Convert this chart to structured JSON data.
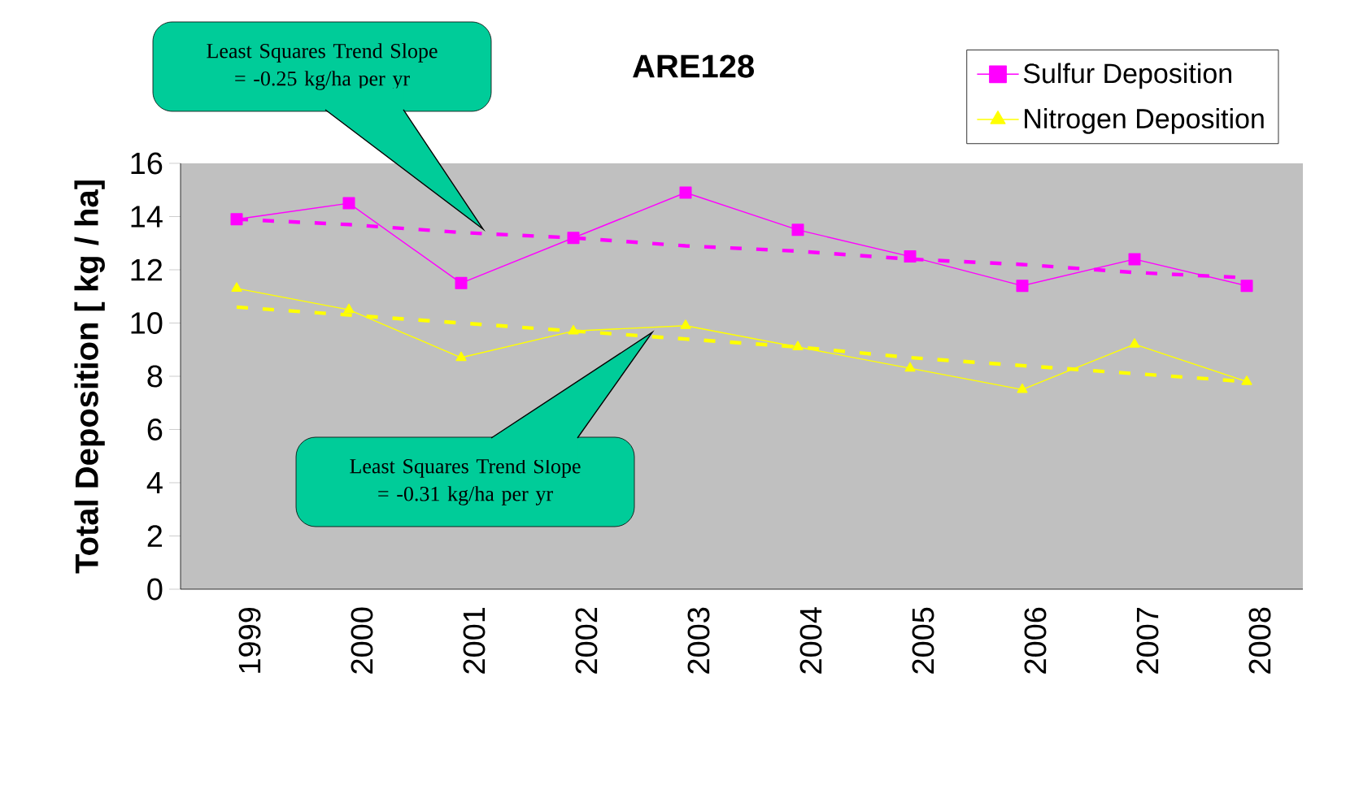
{
  "chart_data": {
    "type": "line",
    "title": "ARE128",
    "ylabel": "Total Deposition [ kg / ha]",
    "categories": [
      "1999",
      "2000",
      "2001",
      "2002",
      "2003",
      "2004",
      "2005",
      "2006",
      "2007",
      "2008"
    ],
    "series": [
      {
        "name": "Sulfur Deposition",
        "color": "#ff00ff",
        "marker": "square",
        "line_style": "solid",
        "values": [
          13.9,
          14.5,
          11.5,
          13.2,
          14.9,
          13.5,
          12.5,
          11.4,
          12.4,
          11.4
        ]
      },
      {
        "name": "Nitrogen Deposition",
        "color": "#ffff00",
        "marker": "triangle",
        "line_style": "solid",
        "values": [
          11.3,
          10.5,
          8.7,
          9.7,
          9.9,
          9.1,
          8.3,
          7.5,
          9.2,
          7.8
        ]
      },
      {
        "type": "line",
        "color": "#ff00ff",
        "marker": "none",
        "line_style": "dashed",
        "values": [
          13.9,
          13.7,
          13.4,
          13.2,
          12.9,
          12.7,
          12.4,
          12.2,
          11.9,
          11.7
        ]
      },
      {
        "type": "line",
        "color": "#ffff00",
        "marker": "none",
        "line_style": "dashed",
        "values": [
          10.6,
          10.3,
          10.0,
          9.7,
          9.4,
          9.1,
          8.7,
          8.4,
          8.1,
          7.8
        ]
      }
    ],
    "ylim": [
      0,
      16
    ],
    "yticks": [
      0,
      2,
      4,
      6,
      8,
      10,
      12,
      14,
      16
    ],
    "grid": false,
    "legend": "top right",
    "annotations": [
      "Least Squares Trend Slope = -0.25 kg/ha per yr",
      "Least Squares Trend Slope = -0.31 kg/ha per yr"
    ]
  }
}
